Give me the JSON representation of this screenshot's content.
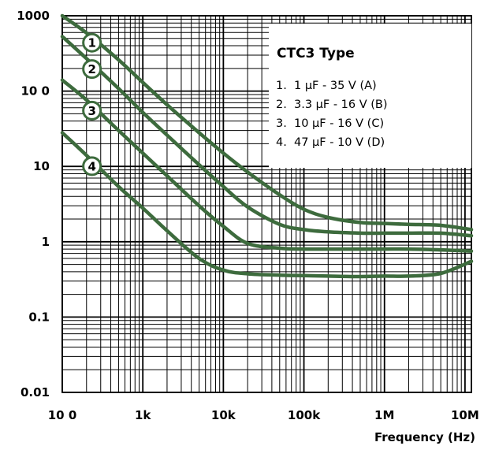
{
  "chart_data": {
    "type": "line",
    "xscale": "log",
    "yscale": "log",
    "xlim": [
      100,
      12000000
    ],
    "ylim": [
      0.01,
      1000
    ],
    "xlabel": "Frequency (Hz)",
    "ylabel": "",
    "x_ticks": [
      {
        "value": 100,
        "label": "10 0"
      },
      {
        "value": 1000,
        "label": "1k"
      },
      {
        "value": 10000,
        "label": "10k"
      },
      {
        "value": 100000,
        "label": "100k"
      },
      {
        "value": 1000000,
        "label": "1M"
      },
      {
        "value": 10000000,
        "label": "10M"
      }
    ],
    "y_ticks": [
      {
        "value": 1000,
        "label": "1000"
      },
      {
        "value": 100,
        "label": "10 0"
      },
      {
        "value": 10,
        "label": "10"
      },
      {
        "value": 1,
        "label": "1"
      },
      {
        "value": 0.1,
        "label": "0.1"
      },
      {
        "value": 0.01,
        "label": "0.01"
      }
    ],
    "grid": true,
    "line_color": "#3d6b3d",
    "legend": {
      "title": "CTC3 Type",
      "placement": "top-right",
      "items": [
        {
          "num": "1.",
          "text": "1  μF - 35 V (A)"
        },
        {
          "num": "2.",
          "text": "3.3  μF - 16 V (B)"
        },
        {
          "num": "3.",
          "text": "10  μF - 16 V (C)"
        },
        {
          "num": "4.",
          "text": "47  μF - 10 V (D)"
        }
      ]
    },
    "series": [
      {
        "marker": "1",
        "marker_x": 250,
        "x": [
          100,
          200,
          500,
          1000,
          2000,
          5000,
          10000,
          20000,
          50000,
          100000,
          200000,
          500000,
          1000000,
          2000000,
          5000000,
          12000000
        ],
        "y": [
          1000,
          590,
          260,
          130,
          66,
          28,
          15,
          8.4,
          4.2,
          2.7,
          2.1,
          1.8,
          1.75,
          1.7,
          1.65,
          1.45
        ]
      },
      {
        "marker": "2",
        "marker_x": 250,
        "x": [
          100,
          200,
          500,
          1000,
          2000,
          5000,
          10000,
          20000,
          50000,
          100000,
          200000,
          500000,
          1000000,
          2000000,
          5000000,
          12000000
        ],
        "y": [
          530,
          270,
          108,
          52,
          26,
          10.5,
          5.4,
          2.9,
          1.7,
          1.45,
          1.35,
          1.3,
          1.3,
          1.3,
          1.3,
          1.2
        ]
      },
      {
        "marker": "3",
        "marker_x": 250,
        "x": [
          100,
          200,
          500,
          1000,
          2000,
          5000,
          10000,
          20000,
          50000,
          100000,
          200000,
          500000,
          1000000,
          2000000,
          5000000,
          12000000
        ],
        "y": [
          140,
          76,
          30,
          15,
          7.5,
          3.0,
          1.6,
          0.95,
          0.82,
          0.8,
          0.8,
          0.8,
          0.8,
          0.8,
          0.78,
          0.75
        ]
      },
      {
        "marker": "4",
        "marker_x": 250,
        "x": [
          100,
          200,
          500,
          1000,
          2000,
          5000,
          10000,
          20000,
          50000,
          100000,
          200000,
          500000,
          1000000,
          2000000,
          5000000,
          12000000
        ],
        "y": [
          28,
          14,
          5.4,
          2.8,
          1.4,
          0.6,
          0.42,
          0.375,
          0.36,
          0.355,
          0.35,
          0.345,
          0.35,
          0.35,
          0.38,
          0.55
        ]
      }
    ]
  }
}
